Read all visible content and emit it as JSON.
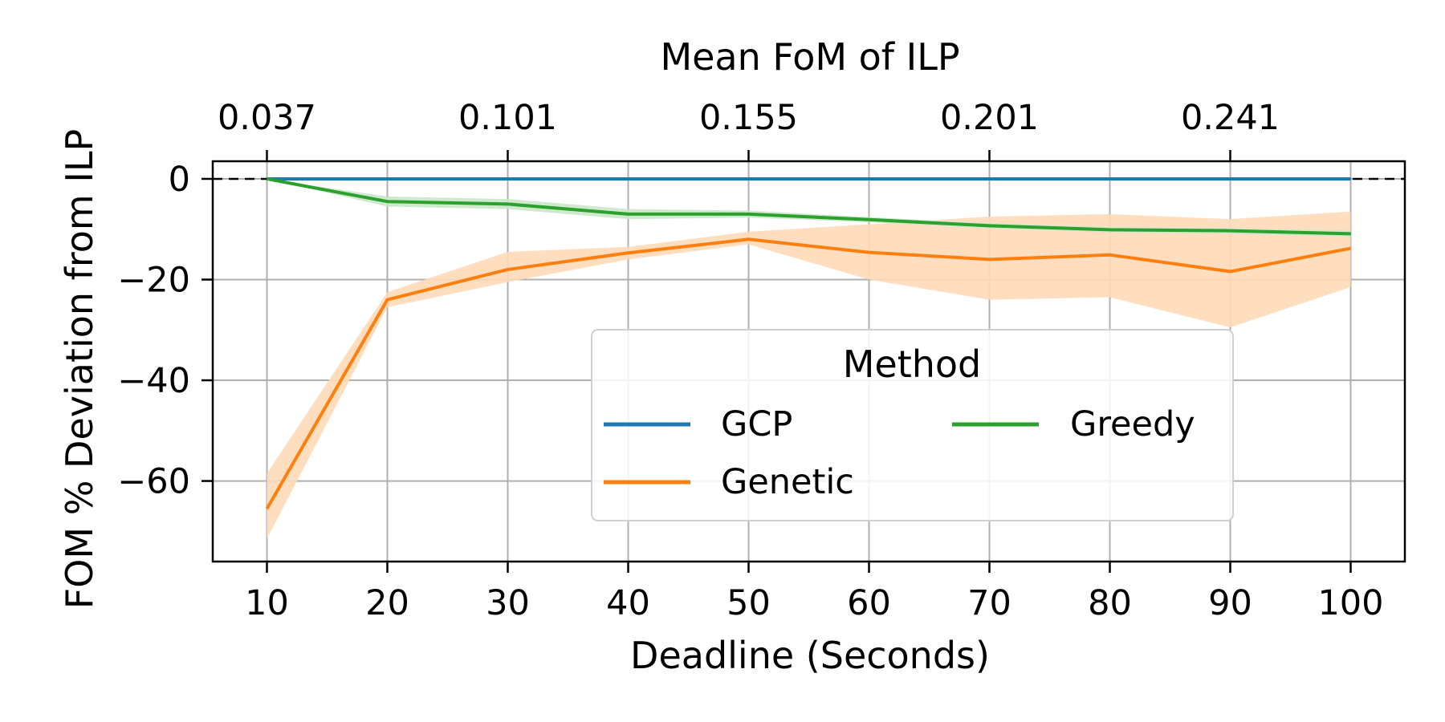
{
  "chart_data": {
    "type": "line",
    "title": "",
    "xlabel": "Deadline (Seconds)",
    "ylabel": "FOM % Deviation from ILP",
    "top_xlabel": "Mean FoM of ILP",
    "x": [
      10,
      20,
      30,
      40,
      50,
      60,
      70,
      80,
      90,
      100
    ],
    "xlim": [
      5.5,
      104.5
    ],
    "ylim": [
      -76,
      3.5
    ],
    "x_ticks": [
      10,
      20,
      30,
      40,
      50,
      60,
      70,
      80,
      90,
      100
    ],
    "y_ticks": [
      0,
      -20,
      -40,
      -60
    ],
    "y_tick_labels": [
      "0",
      "−20",
      "−40",
      "−60"
    ],
    "top_ticks": [
      {
        "x": 10,
        "label": "0.037"
      },
      {
        "x": 30,
        "label": "0.101"
      },
      {
        "x": 50,
        "label": "0.155"
      },
      {
        "x": 70,
        "label": "0.201"
      },
      {
        "x": 90,
        "label": "0.241"
      }
    ],
    "grid": true,
    "reference_line": {
      "y": 0,
      "style": "dashed",
      "color": "#000000"
    },
    "legend": {
      "title": "Method",
      "placement": "center-right",
      "columns": 2
    },
    "series": [
      {
        "name": "GCP",
        "color": "#1f77b4",
        "values": [
          0,
          0,
          0,
          0,
          0,
          0,
          0,
          0,
          0,
          0
        ],
        "lower": [
          0,
          0,
          0,
          0,
          0,
          0,
          0,
          0,
          0,
          0
        ],
        "upper": [
          0,
          0,
          0,
          0,
          0,
          0,
          0,
          0,
          0,
          0
        ]
      },
      {
        "name": "Genetic",
        "color": "#ff7f0e",
        "band_color": "#ffd9b8",
        "values": [
          -65.5,
          -24,
          -18,
          -14.7,
          -12,
          -14.6,
          -16,
          -15.1,
          -18.4,
          -13.8
        ],
        "lower": [
          -71.5,
          -25.5,
          -20.5,
          -16,
          -13,
          -20,
          -24,
          -23.5,
          -29.5,
          -21.5
        ],
        "upper": [
          -58.5,
          -22.5,
          -14.5,
          -13.5,
          -10.5,
          -9,
          -7.5,
          -7,
          -8,
          -6.5
        ]
      },
      {
        "name": "Greedy",
        "color": "#2ca02c",
        "band_color": "#c9e7c9",
        "values": [
          0,
          -4.5,
          -5,
          -7,
          -7,
          -8.1,
          -9.3,
          -10.1,
          -10.3,
          -10.9
        ],
        "lower": [
          0,
          -5.5,
          -6,
          -8,
          -7.7,
          -8.6,
          -9.8,
          -10.6,
          -10.9,
          -11.5
        ],
        "upper": [
          0,
          -3.5,
          -4,
          -6,
          -6.3,
          -7.6,
          -8.8,
          -9.6,
          -9.8,
          -10.3
        ]
      }
    ]
  }
}
